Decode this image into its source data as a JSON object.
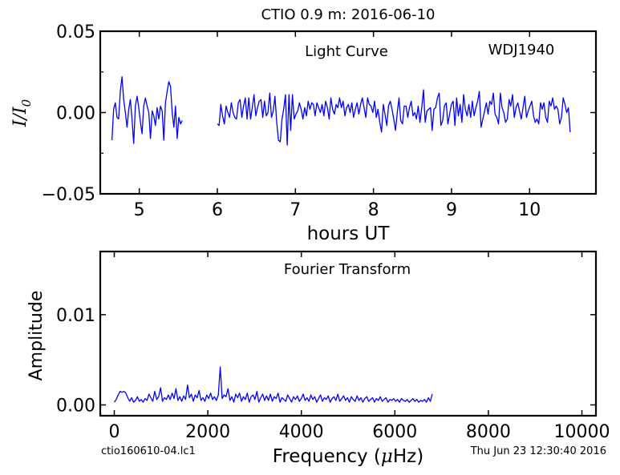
{
  "figure": {
    "title": "CTIO 0.9 m:  2016-06-10",
    "footer_left": "ctio160610-04.lc1",
    "footer_right": "Thu Jun 23 12:30:40 2016"
  },
  "chart_data": [
    {
      "type": "line",
      "panel": "top",
      "annotation_left": "Light Curve",
      "annotation_right": "WDJ1940",
      "xlabel": "hours UT",
      "ylabel": "I/I0",
      "xlim": [
        4.5,
        10.85
      ],
      "ylim": [
        -0.05,
        0.05
      ],
      "xticks": [
        5,
        6,
        7,
        8,
        9,
        10
      ],
      "yticks": [
        -0.05,
        0.0,
        0.05
      ],
      "ytick_labels": [
        "−0.05",
        "0.00",
        "0.05"
      ],
      "line_color": "#0000ff",
      "series": [
        {
          "segment": 1,
          "x_start": 4.65,
          "x_end": 5.55,
          "y": [
            -0.017,
            0.002,
            0.006,
            -0.003,
            -0.004,
            0.013,
            0.022,
            0.008,
            0.0,
            -0.009,
            0.002,
            0.008,
            -0.004,
            -0.019,
            0.004,
            0.01,
            0.003,
            -0.006,
            -0.013,
            0.004,
            0.009,
            0.004,
            0.0,
            -0.016,
            0.001,
            -0.002,
            -0.008,
            0.003,
            -0.004,
            0.004,
            0.001,
            -0.017,
            0.006,
            0.013,
            0.019,
            0.016,
            0.0,
            -0.009,
            0.004,
            -0.016,
            -0.003,
            -0.007,
            -0.005
          ]
        },
        {
          "segment": 2,
          "x_start": 6.0,
          "x_end": 10.52,
          "y": [
            -0.007,
            -0.008,
            0.005,
            -0.002,
            -0.007,
            0.004,
            0.0,
            -0.003,
            0.006,
            0.0,
            -0.003,
            -0.004,
            0.006,
            0.008,
            -0.003,
            0.004,
            0.009,
            -0.004,
            0.009,
            -0.004,
            0.003,
            0.011,
            -0.002,
            0.003,
            0.007,
            0.008,
            -0.003,
            0.007,
            -0.002,
            0.0,
            0.012,
            -0.003,
            0.001,
            0.01,
            -0.006,
            -0.017,
            -0.018,
            -0.004,
            0.002,
            0.011,
            -0.02,
            0.011,
            -0.011,
            0.011,
            -0.004,
            -0.001,
            0.001,
            0.006,
            0.002,
            -0.004,
            0.003,
            -0.002,
            0.007,
            0.002,
            0.006,
            0.005,
            -0.002,
            0.006,
            0.003,
            0.0,
            0.005,
            -0.002,
            0.007,
            0.003,
            -0.004,
            0.009,
            0.002,
            -0.001,
            0.005,
            0.003,
            0.009,
            0.003,
            0.007,
            -0.002,
            0.003,
            0.005,
            0.0,
            0.006,
            -0.003,
            0.002,
            0.006,
            -0.001,
            0.005,
            0.009,
            0.003,
            -0.003,
            0.009,
            0.005,
            0.004,
            0.0,
            0.007,
            -0.003,
            0.002,
            -0.006,
            -0.012,
            0.005,
            -0.001,
            -0.008,
            0.004,
            0.007,
            0.002,
            -0.004,
            -0.011,
            0.0,
            0.009,
            -0.005,
            -0.007,
            0.004,
            0.004,
            -0.003,
            0.003,
            0.007,
            -0.002,
            0.0,
            -0.004,
            0.004,
            -0.006,
            0.003,
            0.014,
            -0.006,
            0.001,
            0.002,
            0.003,
            -0.011,
            0.002,
            0.003,
            0.009,
            0.012,
            -0.008,
            -0.005,
            0.004,
            0.006,
            -0.007,
            -0.001,
            0.005,
            0.007,
            -0.008,
            0.009,
            -0.002,
            0.005,
            -0.006,
            0.011,
            0.002,
            -0.002,
            0.005,
            -0.003,
            0.007,
            -0.002,
            0.003,
            0.007,
            0.013,
            -0.009,
            -0.004,
            0.001,
            0.006,
            -0.001,
            0.007,
            0.005,
            0.012,
            -0.001,
            -0.003,
            -0.007,
            0.012,
            0.003,
            0.0,
            -0.006,
            -0.004,
            0.008,
            0.004,
            0.011,
            -0.003,
            0.003,
            0.006,
            0.001,
            -0.004,
            0.003,
            0.01,
            -0.003,
            0.001,
            0.004,
            0.007,
            -0.002,
            -0.006,
            -0.004,
            -0.007,
            0.006,
            0.002,
            0.006,
            -0.003,
            -0.006,
            0.007,
            0.004,
            0.009,
            0.002,
            0.004,
            0.002,
            -0.007,
            -0.003,
            0.009,
            0.005,
            0.0,
            0.003,
            -0.012
          ]
        }
      ]
    },
    {
      "type": "line",
      "panel": "bottom",
      "annotation": "Fourier Transform",
      "xlabel": "Frequency (μHz)",
      "xlabel_text": "Frequency (",
      "xlabel_mu": "μ",
      "xlabel_unit": "Hz)",
      "ylabel": "Amplitude",
      "xlim": [
        -300,
        10300
      ],
      "ylim": [
        -0.0012,
        0.017
      ],
      "xticks": [
        0,
        2000,
        4000,
        6000,
        8000,
        10000
      ],
      "yticks": [
        0.0,
        0.01
      ],
      "ytick_labels": [
        "0.00",
        "0.01"
      ],
      "line_color": "#0000ff",
      "series": [
        {
          "name": "",
          "x_start": 0,
          "x_end": 6800,
          "y": [
            0.0003,
            0.0006,
            0.0011,
            0.0015,
            0.0014,
            0.0015,
            0.0013,
            0.0008,
            0.0004,
            0.0008,
            0.0003,
            0.0005,
            0.0009,
            0.0004,
            0.0006,
            0.0003,
            0.0007,
            0.0005,
            0.0012,
            0.0008,
            0.0004,
            0.0015,
            0.0006,
            0.0009,
            0.0019,
            0.0004,
            0.0008,
            0.0006,
            0.0011,
            0.0006,
            0.0013,
            0.0007,
            0.0018,
            0.0005,
            0.0009,
            0.0004,
            0.001,
            0.0006,
            0.0022,
            0.0008,
            0.0012,
            0.0004,
            0.0011,
            0.0008,
            0.0016,
            0.0005,
            0.0008,
            0.0004,
            0.0011,
            0.0007,
            0.0013,
            0.0006,
            0.0009,
            0.0005,
            0.0011,
            0.0042,
            0.0007,
            0.0011,
            0.0009,
            0.0018,
            0.0005,
            0.0009,
            0.0003,
            0.0012,
            0.0008,
            0.0013,
            0.0004,
            0.0009,
            0.0006,
            0.0013,
            0.0003,
            0.0009,
            0.0011,
            0.0006,
            0.0015,
            0.0003,
            0.0008,
            0.0012,
            0.0005,
            0.001,
            0.0005,
            0.0012,
            0.0004,
            0.0009,
            0.0007,
            0.0013,
            0.0003,
            0.0008,
            0.0006,
            0.0004,
            0.0011,
            0.0007,
            0.0003,
            0.0009,
            0.0006,
            0.001,
            0.0004,
            0.0007,
            0.0012,
            0.0005,
            0.0008,
            0.0004,
            0.0011,
            0.0006,
            0.0009,
            0.0003,
            0.0007,
            0.0011,
            0.0004,
            0.0008,
            0.0006,
            0.001,
            0.0003,
            0.0007,
            0.0009,
            0.0005,
            0.0012,
            0.0004,
            0.0007,
            0.001,
            0.0005,
            0.0008,
            0.0003,
            0.0009,
            0.0006,
            0.0004,
            0.001,
            0.0005,
            0.0008,
            0.0003,
            0.0007,
            0.0009,
            0.0004,
            0.0006,
            0.0008,
            0.0003,
            0.0007,
            0.0005,
            0.0009,
            0.0004,
            0.0006,
            0.0008,
            0.0003,
            0.0006,
            0.0005,
            0.0007,
            0.0004,
            0.0006,
            0.0003,
            0.0007,
            0.0005,
            0.0004,
            0.0006,
            0.0003,
            0.0005,
            0.0007,
            0.0004,
            0.0006,
            0.0003,
            0.0005,
            0.0004,
            0.0006,
            0.0003,
            0.0008,
            0.0004,
            0.0012
          ]
        }
      ]
    }
  ]
}
